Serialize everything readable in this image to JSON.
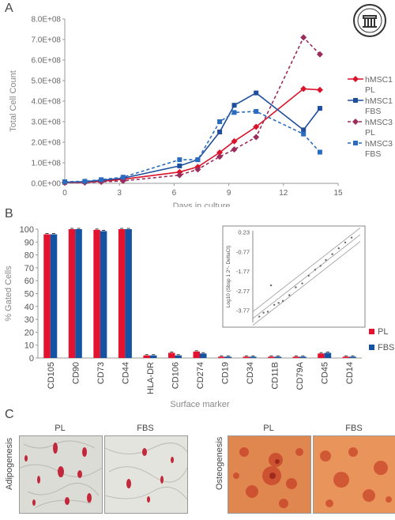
{
  "panels": {
    "a": "A",
    "b": "B",
    "c": "C"
  },
  "chart_data": [
    {
      "type": "line",
      "xlabel": "Days in culture",
      "ylabel": "Total Cell Count",
      "xlim": [
        0,
        15
      ],
      "ylim": [
        0,
        800000000
      ],
      "xticks": [
        "0",
        "3",
        "6",
        "9",
        "12",
        "15"
      ],
      "yticks": [
        "0.0E+00",
        "1.0E+08",
        "2.0E+08",
        "3.0E+08",
        "4.0E+08",
        "5.0E+08",
        "6.0E+08",
        "7.0E+08",
        "8.0E+08"
      ],
      "legend_position": "right",
      "series": [
        {
          "name": "hMSC1 PL",
          "color": "#d9142b",
          "marker": "diamond",
          "dash": false,
          "x": [
            0,
            1.1,
            2,
            3.2,
            6.3,
            7.3,
            8.5,
            9.3,
            10.5,
            13.1,
            14
          ],
          "y": [
            5000000,
            5000000,
            10000000,
            20000000,
            55000000,
            80000000,
            150000000,
            205000000,
            275000000,
            460000000,
            455000000
          ]
        },
        {
          "name": "hMSC1 FBS",
          "color": "#1f4e9c",
          "marker": "square",
          "dash": false,
          "x": [
            0,
            1.1,
            2,
            3.2,
            6.3,
            7.3,
            8.5,
            9.3,
            10.5,
            13.1,
            14
          ],
          "y": [
            5000000,
            8000000,
            15000000,
            25000000,
            85000000,
            115000000,
            250000000,
            380000000,
            440000000,
            260000000,
            365000000
          ]
        },
        {
          "name": "hMSC3 PL",
          "color": "#9b2d5c",
          "marker": "diamond",
          "dash": true,
          "x": [
            0,
            1.1,
            2,
            3.2,
            6.3,
            7.3,
            8.5,
            9.3,
            10.5,
            13.1,
            14
          ],
          "y": [
            3000000,
            4000000,
            7000000,
            12000000,
            40000000,
            68000000,
            130000000,
            165000000,
            225000000,
            710000000,
            628000000
          ]
        },
        {
          "name": "hMSC3 FBS",
          "color": "#2a6cc0",
          "marker": "square",
          "dash": true,
          "x": [
            0,
            1.1,
            2,
            3.2,
            6.3,
            7.3,
            8.5,
            9.3,
            10.5,
            13.1,
            14
          ],
          "y": [
            8000000,
            10000000,
            18000000,
            30000000,
            115000000,
            115000000,
            300000000,
            345000000,
            350000000,
            240000000,
            152000000
          ]
        }
      ]
    },
    {
      "type": "bar",
      "xlabel": "Surface marker",
      "ylabel": "% Gated Cells",
      "ylim": [
        0,
        100
      ],
      "yticks": [
        "0",
        "10",
        "20",
        "30",
        "40",
        "50",
        "60",
        "70",
        "80",
        "90",
        "100"
      ],
      "legend_position": "right",
      "categories": [
        "CD105",
        "CD90",
        "CD73",
        "CD44",
        "HLA-DR",
        "CD106",
        "CD274",
        "CD19",
        "CD34",
        "CD11B",
        "CD79A",
        "CD45",
        "CD14"
      ],
      "series": [
        {
          "name": "PL",
          "color": "#e3122f",
          "values": [
            96,
            100,
            99.5,
            100,
            2,
            4,
            5,
            1,
            1,
            1,
            1,
            3.5,
            1
          ]
        },
        {
          "name": "FBS",
          "color": "#1452a2",
          "values": [
            96,
            100,
            98.5,
            100,
            2,
            2,
            3.5,
            1,
            1,
            1,
            1,
            4,
            1
          ]
        }
      ]
    },
    {
      "type": "scatter",
      "ylabel": "Log10 (Sbsp 1 2^- DeltaCt)",
      "yticks": [
        "0.23",
        "-0.77",
        "-1.77",
        "-2.77",
        "-3.77"
      ],
      "ylim": [
        -4.4,
        0.3
      ],
      "xlim": [
        0,
        1
      ],
      "points": [
        {
          "x": 0.06,
          "y": -4.1
        },
        {
          "x": 0.1,
          "y": -3.9
        },
        {
          "x": 0.14,
          "y": -3.85
        },
        {
          "x": 0.2,
          "y": -3.5
        },
        {
          "x": 0.24,
          "y": -3.4
        },
        {
          "x": 0.28,
          "y": -3.3
        },
        {
          "x": 0.17,
          "y": -2.5
        },
        {
          "x": 0.34,
          "y": -3.0
        },
        {
          "x": 0.4,
          "y": -2.6
        },
        {
          "x": 0.46,
          "y": -2.4
        },
        {
          "x": 0.52,
          "y": -2.0
        },
        {
          "x": 0.58,
          "y": -1.7
        },
        {
          "x": 0.63,
          "y": -1.5
        },
        {
          "x": 0.68,
          "y": -1.2
        },
        {
          "x": 0.74,
          "y": -0.9
        },
        {
          "x": 0.8,
          "y": -0.6
        },
        {
          "x": 0.86,
          "y": -0.3
        },
        {
          "x": 0.92,
          "y": -0.05
        }
      ]
    }
  ],
  "panel_c": {
    "adipo_label": "Adipogenesis",
    "osteo_label": "Osteogenesis",
    "pl": "PL",
    "fbs": "FBS"
  }
}
